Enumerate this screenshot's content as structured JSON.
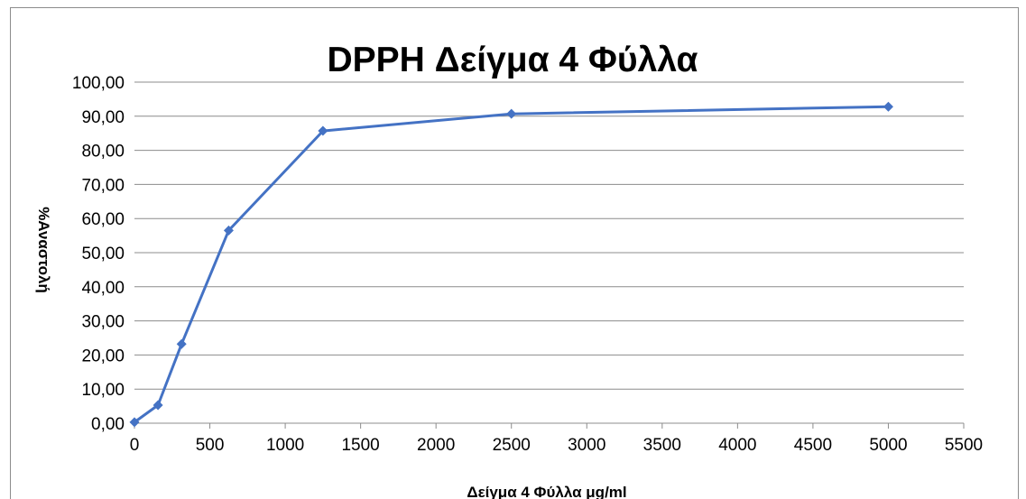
{
  "chart_data": {
    "type": "line",
    "title": "DPPH Δείγμα 4 Φύλλα",
    "xlabel": "Δείγμα 4 Φύλλα  μg/ml",
    "ylabel": "%Αναστολή",
    "xlim": [
      0,
      5500
    ],
    "ylim": [
      0,
      100
    ],
    "x_ticks": [
      "0",
      "500",
      "1000",
      "1500",
      "2000",
      "2500",
      "3000",
      "3500",
      "4000",
      "4500",
      "5000",
      "5500"
    ],
    "y_ticks": [
      "0,00",
      "10,00",
      "20,00",
      "30,00",
      "40,00",
      "50,00",
      "60,00",
      "70,00",
      "80,00",
      "90,00",
      "100,00"
    ],
    "grid": "horizontal",
    "legend": "none",
    "series": [
      {
        "x": [
          0,
          156.25,
          312.5,
          625,
          1250,
          2500,
          5000
        ],
        "y": [
          0.3,
          5.3,
          23.2,
          56.5,
          85.7,
          90.7,
          92.8
        ],
        "color": "#4472C4",
        "marker": "diamond"
      }
    ]
  }
}
